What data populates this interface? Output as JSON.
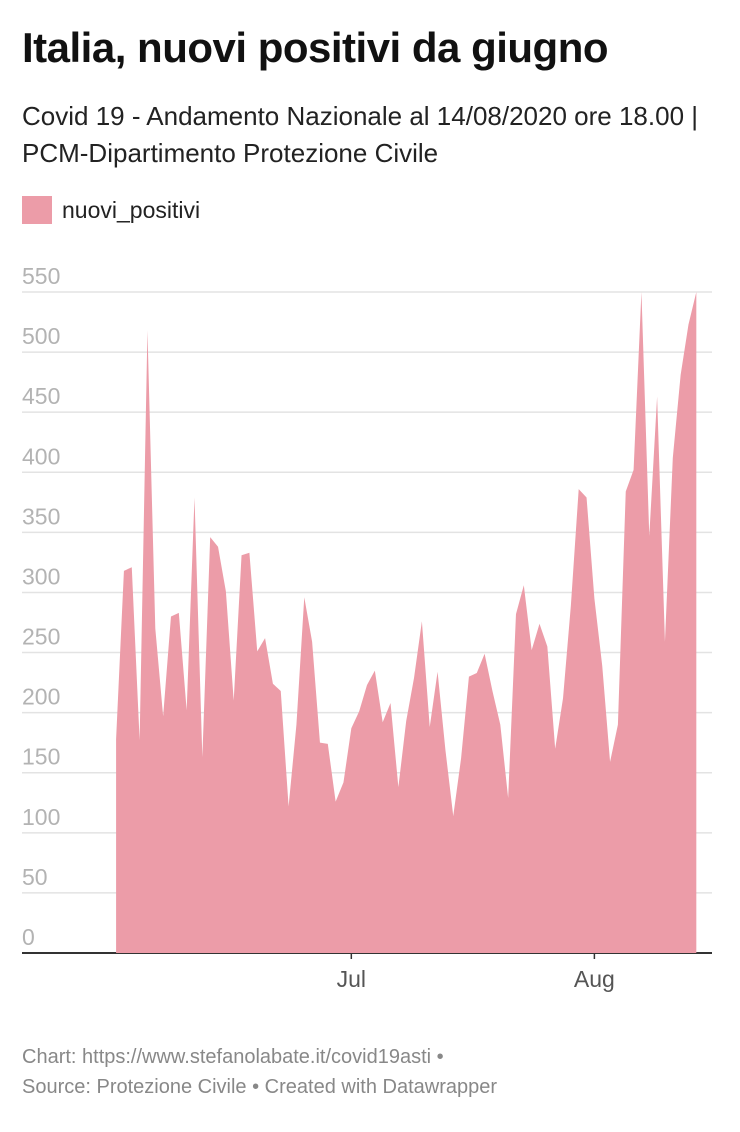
{
  "title": "Italia, nuovi positivi da giugno",
  "subtitle": "Covid 19 - Andamento Nazionale al 14/08/2020 ore 18.00 | PCM-Dipartimento Protezione Civile",
  "legend": {
    "label": "nuovi_positivi",
    "color": "#ec9ca8"
  },
  "footer": {
    "line1": "Chart: https://www.stefanolabate.it/covid19asti •",
    "line2": "Source: Protezione Civile • Created with Datawrapper"
  },
  "chart_data": {
    "type": "area",
    "x": [
      "2020-06-01",
      "2020-06-02",
      "2020-06-03",
      "2020-06-04",
      "2020-06-05",
      "2020-06-06",
      "2020-06-07",
      "2020-06-08",
      "2020-06-09",
      "2020-06-10",
      "2020-06-11",
      "2020-06-12",
      "2020-06-13",
      "2020-06-14",
      "2020-06-15",
      "2020-06-16",
      "2020-06-17",
      "2020-06-18",
      "2020-06-19",
      "2020-06-20",
      "2020-06-21",
      "2020-06-22",
      "2020-06-23",
      "2020-06-24",
      "2020-06-25",
      "2020-06-26",
      "2020-06-27",
      "2020-06-28",
      "2020-06-29",
      "2020-06-30",
      "2020-07-01",
      "2020-07-02",
      "2020-07-03",
      "2020-07-04",
      "2020-07-05",
      "2020-07-06",
      "2020-07-07",
      "2020-07-08",
      "2020-07-09",
      "2020-07-10",
      "2020-07-11",
      "2020-07-12",
      "2020-07-13",
      "2020-07-14",
      "2020-07-15",
      "2020-07-16",
      "2020-07-17",
      "2020-07-18",
      "2020-07-19",
      "2020-07-20",
      "2020-07-21",
      "2020-07-22",
      "2020-07-23",
      "2020-07-24",
      "2020-07-25",
      "2020-07-26",
      "2020-07-27",
      "2020-07-28",
      "2020-07-29",
      "2020-07-30",
      "2020-07-31",
      "2020-08-01",
      "2020-08-02",
      "2020-08-03",
      "2020-08-04",
      "2020-08-05",
      "2020-08-06",
      "2020-08-07",
      "2020-08-08",
      "2020-08-09",
      "2020-08-10",
      "2020-08-11",
      "2020-08-12",
      "2020-08-13",
      "2020-08-14"
    ],
    "series": [
      {
        "name": "nuovi_positivi",
        "values": [
          178,
          318,
          321,
          177,
          518,
          270,
          197,
          280,
          283,
          202,
          379,
          163,
          346,
          338,
          301,
          210,
          331,
          333,
          251,
          262,
          224,
          218,
          122,
          190,
          296,
          259,
          175,
          174,
          126,
          142,
          187,
          201,
          223,
          235,
          192,
          208,
          138,
          193,
          229,
          276,
          188,
          234,
          169,
          114,
          162,
          230,
          233,
          249,
          218,
          190,
          129,
          282,
          306,
          252,
          274,
          255,
          170,
          212,
          289,
          386,
          379,
          295,
          239,
          159,
          190,
          384,
          402,
          552,
          347,
          463,
          259,
          412,
          481,
          523,
          574
        ]
      }
    ],
    "x_ticks": [
      {
        "date": "2020-07-01",
        "label": "Jul"
      },
      {
        "date": "2020-08-01",
        "label": "Aug"
      }
    ],
    "y_ticks": [
      0,
      50,
      100,
      150,
      200,
      250,
      300,
      350,
      400,
      450,
      500,
      550
    ],
    "ylim": [
      0,
      550
    ],
    "xlim": [
      "2020-05-20",
      "2020-08-16"
    ],
    "grid": true,
    "legend_position": "top-left"
  }
}
